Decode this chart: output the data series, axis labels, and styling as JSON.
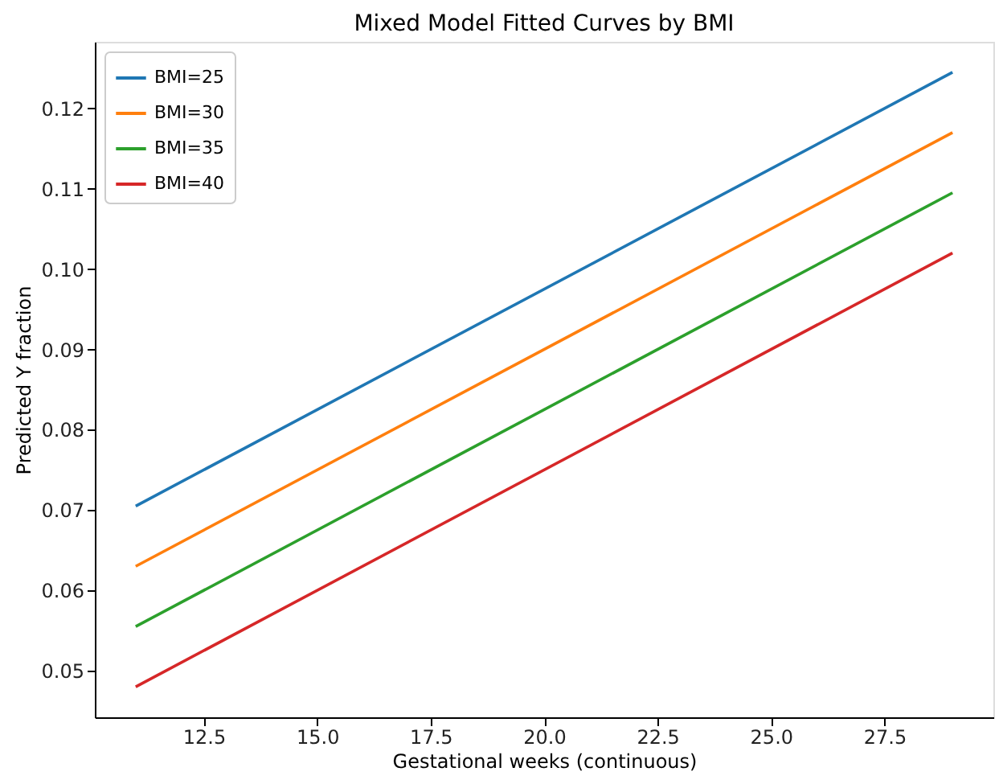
{
  "chart_data": {
    "type": "line",
    "title": "Mixed Model Fitted Curves by BMI",
    "xlabel": "Gestational weeks (continuous)",
    "ylabel": "Predicted Y fraction",
    "x": [
      11,
      29
    ],
    "series": [
      {
        "name": "BMI=25",
        "color": "#1f77b4",
        "values": [
          0.0705,
          0.1245
        ]
      },
      {
        "name": "BMI=30",
        "color": "#ff7f0e",
        "values": [
          0.063,
          0.117
        ]
      },
      {
        "name": "BMI=35",
        "color": "#2ca02c",
        "values": [
          0.0555,
          0.1095
        ]
      },
      {
        "name": "BMI=40",
        "color": "#d62728",
        "values": [
          0.048,
          0.102
        ]
      }
    ],
    "xlim": [
      10.1,
      29.9
    ],
    "xticks": [
      {
        "value": 12.5,
        "label": "12.5"
      },
      {
        "value": 15,
        "label": "15.0"
      },
      {
        "value": 17.5,
        "label": "17.5"
      },
      {
        "value": 20,
        "label": "20.0"
      },
      {
        "value": 22.5,
        "label": "22.5"
      },
      {
        "value": 25,
        "label": "25.0"
      },
      {
        "value": 27.5,
        "label": "27.5"
      }
    ],
    "ylim": [
      0.0442,
      0.1283
    ],
    "yticks": [
      {
        "value": 0.05,
        "label": "0.05"
      },
      {
        "value": 0.06,
        "label": "0.06"
      },
      {
        "value": 0.07,
        "label": "0.07"
      },
      {
        "value": 0.08,
        "label": "0.08"
      },
      {
        "value": 0.09,
        "label": "0.09"
      },
      {
        "value": 0.1,
        "label": "0.10"
      },
      {
        "value": 0.11,
        "label": "0.11"
      },
      {
        "value": 0.12,
        "label": "0.12"
      }
    ],
    "legend": "top left",
    "grid": false,
    "marker": "none",
    "line_style": "solid"
  }
}
